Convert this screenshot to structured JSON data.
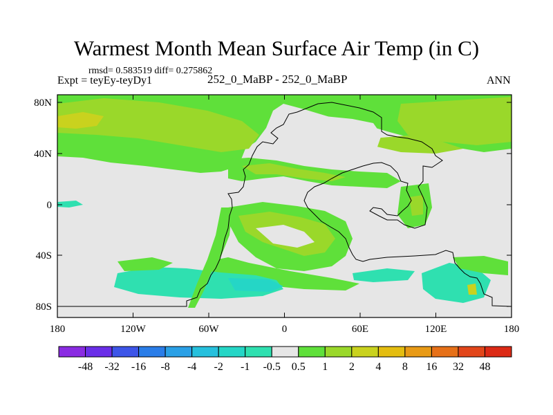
{
  "title": "Warmest Month Mean Surface Air Temp (in C)",
  "stats": "rmsd= 0.583519 diff= 0.275862",
  "experiment": "Expt = teyEy-teyDy1",
  "subtitle": "252_0_MaBP - 252_0_MaBP",
  "season": "ANN",
  "x_ticks": [
    "180",
    "120W",
    "60W",
    "0",
    "60E",
    "120E",
    "180"
  ],
  "y_ticks": [
    "80N",
    "40N",
    "0",
    "40S",
    "80S"
  ],
  "colorbar": {
    "labels": [
      "-48",
      "-32",
      "-16",
      "-8",
      "-4",
      "-2",
      "-1",
      "-0.5",
      "0.5",
      "1",
      "2",
      "4",
      "8",
      "16",
      "32",
      "48"
    ],
    "colors": [
      "#8a2be2",
      "#6a2ee8",
      "#3d55e8",
      "#2a7de8",
      "#2aa0e6",
      "#26c0dd",
      "#25d6c6",
      "#2fe0b0",
      "#e6e6e6",
      "#5fe03a",
      "#9ad82a",
      "#c9d21e",
      "#e4bd10",
      "#e89a16",
      "#e67018",
      "#e2461a",
      "#dc2a16"
    ]
  },
  "fill_colors": {
    "background": "#e6e6e6",
    "cyan": "#2fe0b0",
    "light_green": "#5fe03a",
    "green": "#9ad82a",
    "olive": "#c9d21e"
  }
}
